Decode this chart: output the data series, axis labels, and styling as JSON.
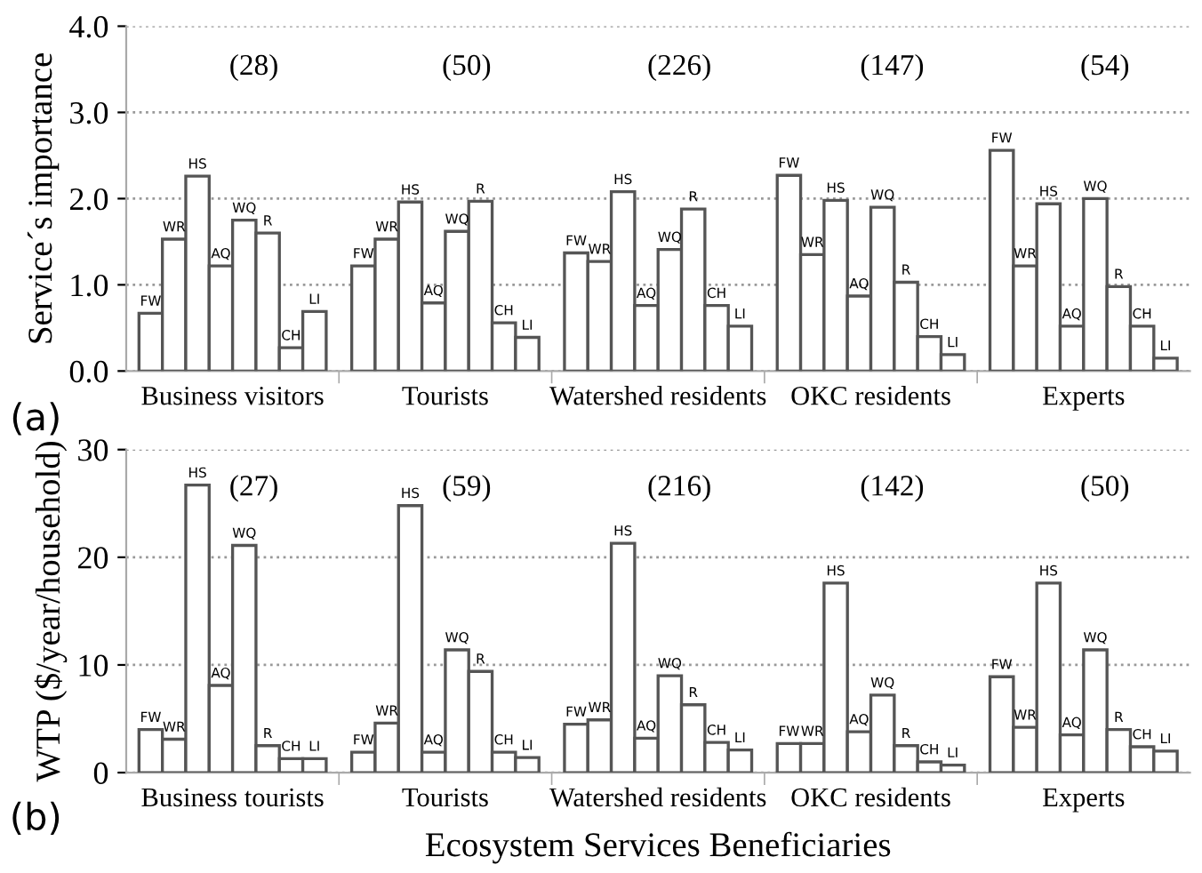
{
  "chart_data": [
    {
      "type": "bar",
      "ylabel": "Service´s importance",
      "categories": [
        "Business visitors",
        "Tourists",
        "Watershed residents",
        "OKC residents",
        "Experts"
      ],
      "series": [
        {
          "name": "FW",
          "color": "#ffffff",
          "values": [
            0.67,
            1.22,
            1.37,
            2.27,
            2.56
          ]
        },
        {
          "name": "WR",
          "color": "#ffffff",
          "values": [
            1.53,
            1.53,
            1.27,
            1.35,
            1.22
          ]
        },
        {
          "name": "HS",
          "color": "#ffffff",
          "values": [
            2.26,
            1.96,
            2.08,
            1.98,
            1.94
          ]
        },
        {
          "name": "AQ",
          "color": "#ffffff",
          "values": [
            1.22,
            0.79,
            0.76,
            0.87,
            0.52
          ]
        },
        {
          "name": "WQ",
          "color": "#ffffff",
          "values": [
            1.75,
            1.62,
            1.41,
            1.9,
            2.0
          ]
        },
        {
          "name": "R",
          "color": "#ffffff",
          "values": [
            1.6,
            1.97,
            1.88,
            1.03,
            0.98
          ]
        },
        {
          "name": "CH",
          "color": "#ffffff",
          "values": [
            0.27,
            0.56,
            0.76,
            0.4,
            0.52
          ]
        },
        {
          "name": "LI",
          "color": "#ffffff",
          "values": [
            0.69,
            0.39,
            0.52,
            0.19,
            0.15
          ]
        }
      ],
      "ylim": [
        0,
        4
      ],
      "yticks": [
        {
          "value": 0,
          "label": "0.0"
        },
        {
          "value": 1,
          "label": "1.0"
        },
        {
          "value": 2,
          "label": "2.0"
        },
        {
          "value": 3,
          "label": "3.0"
        },
        {
          "value": 4,
          "label": "4.0"
        }
      ],
      "grid": "y",
      "legend": false,
      "annotations": [
        "(28)",
        "(50)",
        "(226)",
        "(147)",
        "(54)",
        "(a)"
      ]
    },
    {
      "type": "bar",
      "ylabel": "WTP ($/year/household)",
      "xlabel": "Ecosystem Services Beneficiaries",
      "categories": [
        "Business tourists",
        "Tourists",
        "Watershed residents",
        "OKC residents",
        "Experts"
      ],
      "series": [
        {
          "name": "FW",
          "color": "#ffffff",
          "values": [
            4.0,
            1.9,
            4.5,
            2.7,
            8.9
          ]
        },
        {
          "name": "WR",
          "color": "#ffffff",
          "values": [
            3.1,
            4.6,
            4.9,
            2.7,
            4.2
          ]
        },
        {
          "name": "HS",
          "color": "#ffffff",
          "values": [
            26.7,
            24.8,
            21.3,
            17.6,
            17.6
          ]
        },
        {
          "name": "AQ",
          "color": "#ffffff",
          "values": [
            8.1,
            1.9,
            3.2,
            3.8,
            3.5
          ]
        },
        {
          "name": "WQ",
          "color": "#ffffff",
          "values": [
            21.1,
            11.4,
            9.0,
            7.2,
            11.4
          ]
        },
        {
          "name": "R",
          "color": "#ffffff",
          "values": [
            2.5,
            9.4,
            6.3,
            2.5,
            4.0
          ]
        },
        {
          "name": "CH",
          "color": "#ffffff",
          "values": [
            1.3,
            1.9,
            2.8,
            1.0,
            2.4
          ]
        },
        {
          "name": "LI",
          "color": "#ffffff",
          "values": [
            1.3,
            1.4,
            2.1,
            0.7,
            2.0
          ]
        }
      ],
      "ylim": [
        0,
        30
      ],
      "yticks": [
        0,
        10,
        20,
        30
      ],
      "grid": "y",
      "legend": false,
      "annotations": [
        "(27)",
        "(59)",
        "(216)",
        "(142)",
        "(50)",
        "(b)"
      ]
    }
  ]
}
